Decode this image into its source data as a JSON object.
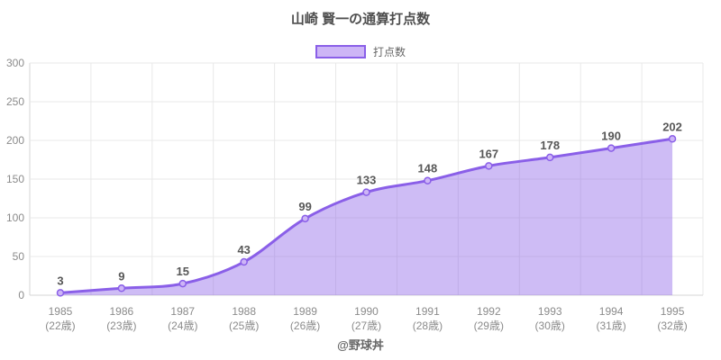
{
  "header": {
    "note": "chart title bound from chart_data.title"
  },
  "footer": {
    "credit": "@野球丼"
  },
  "colors": {
    "line": "#8a5fe8",
    "fill": "#8a5fe8",
    "point_fill": "#cdb5f6",
    "legend_fill": "#cdb5f6",
    "grid": "#e8e8e8",
    "axis": "#d4d4d4",
    "title_text": "#4e4e4e",
    "tick_text": "#8b8b8b",
    "data_label_text": "#575757",
    "legend_text": "#666666"
  },
  "chart_data": {
    "type": "area",
    "title": "山崎 賢一の通算打点数",
    "legend_label": "打点数",
    "legend_position": "top",
    "categories": [
      "1985",
      "1986",
      "1987",
      "1988",
      "1989",
      "1990",
      "1991",
      "1992",
      "1993",
      "1994",
      "1995"
    ],
    "age_labels": [
      "(22歳)",
      "(23歳)",
      "(24歳)",
      "(25歳)",
      "(26歳)",
      "(27歳)",
      "(28歳)",
      "(29歳)",
      "(30歳)",
      "(31歳)",
      "(32歳)"
    ],
    "values": [
      3,
      9,
      15,
      43,
      99,
      133,
      148,
      167,
      178,
      190,
      202
    ],
    "xlabel": "",
    "ylabel": "",
    "ylim": [
      0,
      300
    ],
    "y_ticks": [
      0,
      50,
      100,
      150,
      200,
      250,
      300
    ],
    "grid": true,
    "smooth": true,
    "data_labels": true
  }
}
